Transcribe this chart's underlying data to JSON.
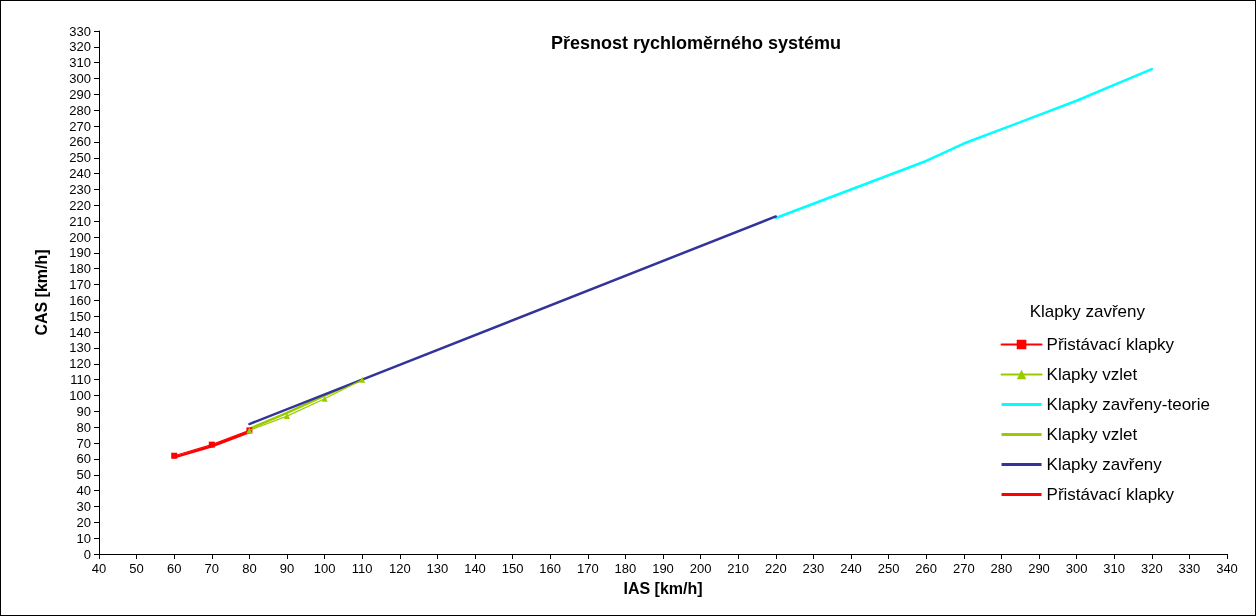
{
  "chart_data": {
    "type": "line",
    "title": "Přesnost rychloměrného systému",
    "xlabel": "IAS [km/h]",
    "ylabel": "CAS [km/h]",
    "legend_title": "Klapky zavřeny",
    "legend": "right",
    "grid": false,
    "xlim": [
      40,
      340
    ],
    "xticks": [
      40,
      50,
      60,
      70,
      80,
      90,
      100,
      110,
      120,
      130,
      140,
      150,
      160,
      170,
      180,
      190,
      200,
      210,
      220,
      230,
      240,
      250,
      260,
      270,
      280,
      290,
      300,
      310,
      320,
      330,
      340
    ],
    "ylim": [
      0,
      330
    ],
    "yticks": [
      0,
      10,
      20,
      30,
      40,
      50,
      60,
      70,
      80,
      90,
      100,
      110,
      120,
      130,
      140,
      150,
      160,
      170,
      180,
      190,
      200,
      210,
      220,
      230,
      240,
      250,
      260,
      270,
      280,
      290,
      300,
      310,
      320,
      330
    ],
    "series": [
      {
        "name": "Přistávací klapky",
        "color": "#ff0000",
        "marker": "square",
        "x": [
          60,
          70,
          80
        ],
        "values": [
          62,
          69,
          78
        ]
      },
      {
        "name": "Klapky vzlet",
        "color": "#99cc00",
        "marker": "triangle",
        "x": [
          80,
          90,
          100,
          110
        ],
        "values": [
          78,
          87,
          98,
          110
        ]
      },
      {
        "name": "Klapky zavřeny-teorie",
        "color": "#00ffff",
        "marker": "none",
        "x": [
          220,
          230,
          260,
          270,
          300,
          310,
          320
        ],
        "values": [
          212,
          221,
          248,
          259,
          286,
          296,
          306
        ]
      },
      {
        "name": "Klapky vzlet",
        "color": "#99cc00",
        "marker": "none",
        "x": [
          80,
          90,
          100,
          110
        ],
        "values": [
          79,
          89,
          100,
          110
        ]
      },
      {
        "name": "Klapky zavřeny",
        "color": "#333399",
        "marker": "none",
        "x": [
          80,
          110,
          220
        ],
        "values": [
          82,
          110,
          213
        ]
      },
      {
        "name": "Přistávací klapky",
        "color": "#ff0000",
        "marker": "none",
        "x": [
          60,
          70,
          80
        ],
        "values": [
          61,
          68,
          77
        ]
      }
    ]
  }
}
